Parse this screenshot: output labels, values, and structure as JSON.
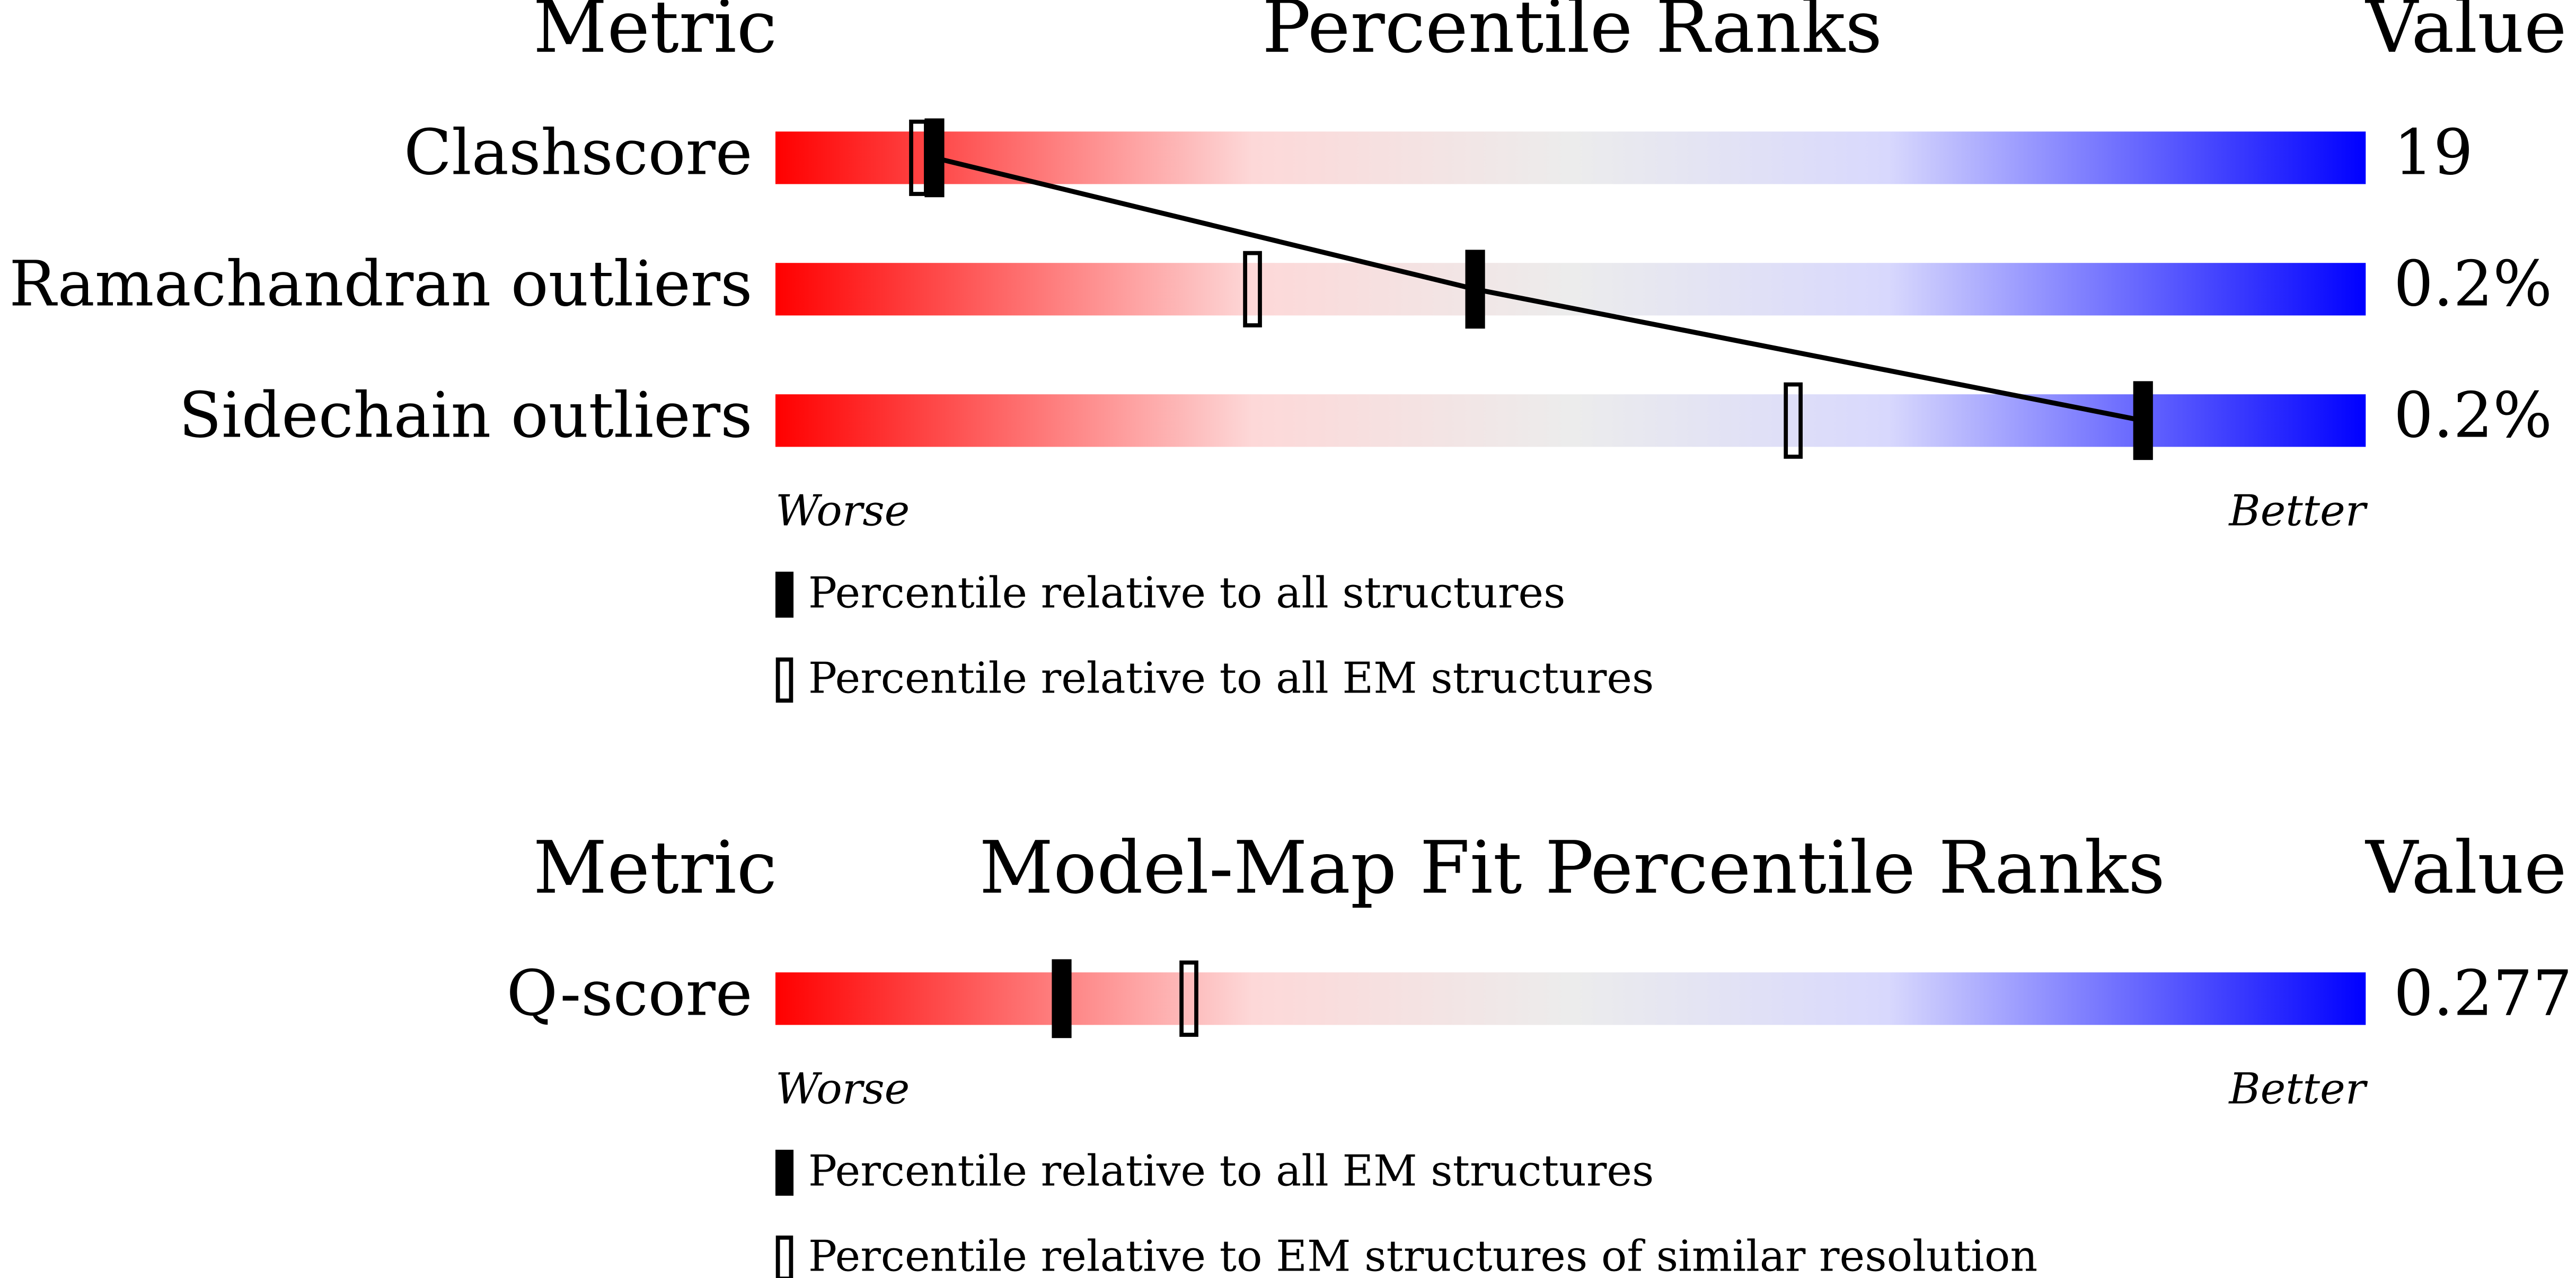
{
  "chart_data": [
    {
      "type": "percentile-slider",
      "title": "Percentile Ranks",
      "left_header": "Metric",
      "right_header": "Value",
      "categories": [
        "Clashscore",
        "Ramachandran outliers",
        "Sidechain outliers"
      ],
      "metric_values": [
        "19",
        "0.2%",
        "0.2%"
      ],
      "xlim": [
        0,
        100
      ],
      "x_label_left": "Worse",
      "x_label_right": "Better",
      "series": [
        {
          "name": "Percentile relative to all structures",
          "color": "#000000",
          "style": "solid",
          "connect": true,
          "values": [
            10,
            44,
            86
          ]
        },
        {
          "name": "Percentile relative to all EM structures",
          "color": "#000000",
          "style": "hollow",
          "connect": false,
          "values": [
            9,
            30,
            64
          ]
        }
      ]
    },
    {
      "type": "percentile-slider",
      "title": "Model-Map Fit Percentile Ranks",
      "left_header": "Metric",
      "right_header": "Value",
      "categories": [
        "Q-score"
      ],
      "metric_values": [
        "0.277"
      ],
      "xlim": [
        0,
        100
      ],
      "x_label_left": "Worse",
      "x_label_right": "Better",
      "series": [
        {
          "name": "Percentile relative to all EM structures",
          "color": "#000000",
          "style": "solid",
          "connect": false,
          "values": [
            18
          ]
        },
        {
          "name": "Percentile relative to EM structures of similar resolution",
          "color": "#000000",
          "style": "hollow",
          "connect": false,
          "values": [
            26
          ]
        }
      ]
    }
  ]
}
